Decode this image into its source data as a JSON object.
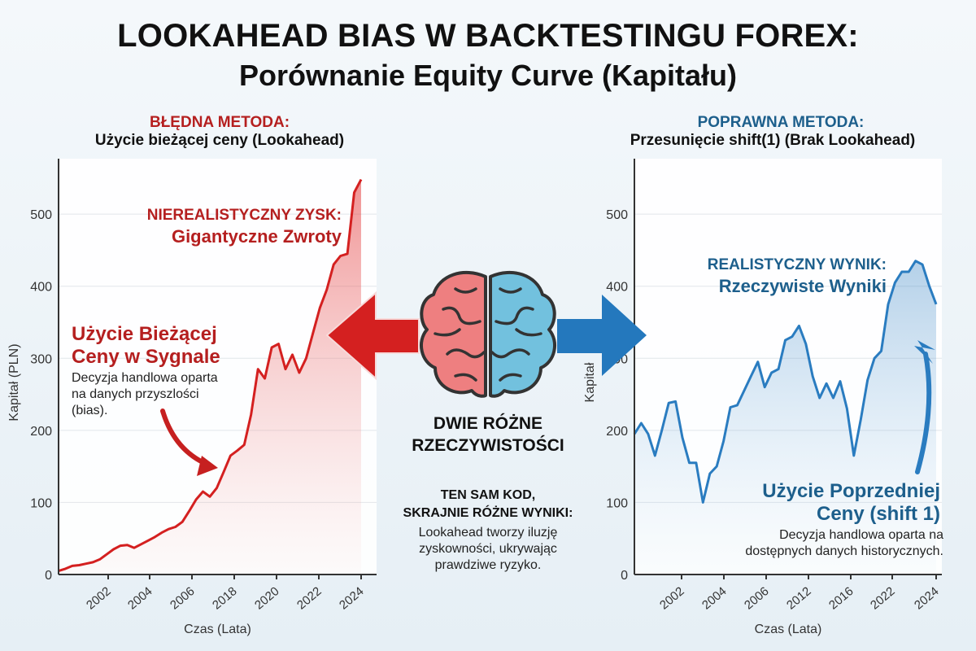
{
  "title": "LOOKAHEAD BIAS W BACKTESTINGU FOREX:",
  "subtitle": "Porównanie Equity Curve (Kapitału)",
  "colors": {
    "wrong": "#d42020",
    "wrong_text": "#b51f1f",
    "right": "#2a7cc0",
    "right_text": "#1d5f8c"
  },
  "left_panel": {
    "header": "BŁĘDNA METODA:",
    "subheader": "Użycie bieżącej ceny (Lookahead)",
    "annotation_top_1": "NIEREALISTYCZNY ZYSK:",
    "annotation_top_2": "Gigantyczne Zwroty",
    "annotation_mid_1": "Użycie Bieżącej",
    "annotation_mid_2": "Ceny w Sygnale",
    "annotation_desc": "Decyzja handlowa oparta na danych przyszlości (bias)."
  },
  "right_panel": {
    "header": "POPRAWNA METODA:",
    "subheader": "Przesunięcie shift(1) (Brak Lookahead)",
    "annotation_top_1": "REALISTYCZNY WYNIK:",
    "annotation_top_2": "Rzeczywiste Wyniki",
    "annotation_mid_1": "Użycie Poprzedniej",
    "annotation_mid_2": "Ceny (shift 1)",
    "annotation_desc": "Decyzja handlowa oparta na dostępnych danych historycznych."
  },
  "center": {
    "heading": "DWIE RÓŻNE RZECZYWISTOŚCI",
    "subheading_1": "TEN SAM KOD,",
    "subheading_2": "SKRAJNIE RÓŻNE WYNIKI:",
    "text": "Lookahead tworzy iluzję zyskowności, ukrywając prawdziwe ryzyko.",
    "icons": [
      "arrow-left-icon",
      "brain-icon",
      "arrow-right-icon"
    ]
  },
  "chart_data": [
    {
      "type": "area",
      "xlabel": "Czas (Lata)",
      "ylabel": "Kapitał (PLN)",
      "ylim": [
        0,
        560
      ],
      "yticks": [
        0,
        100,
        200,
        300,
        400,
        500
      ],
      "xticks": [
        "2002",
        "2004",
        "2006",
        "2018",
        "2020",
        "2022",
        "2024"
      ],
      "grid": true,
      "color": "#d42020",
      "values": [
        5,
        8,
        12,
        13,
        15,
        17,
        21,
        28,
        35,
        40,
        41,
        37,
        42,
        47,
        52,
        58,
        63,
        66,
        73,
        88,
        104,
        115,
        108,
        120,
        142,
        165,
        172,
        180,
        222,
        285,
        272,
        315,
        320,
        285,
        305,
        280,
        300,
        335,
        370,
        395,
        430,
        442,
        445,
        530,
        548
      ]
    },
    {
      "type": "area",
      "xlabel": "Czas (Lata)",
      "ylabel": "Kapitał",
      "ylim": [
        0,
        560
      ],
      "yticks": [
        0,
        100,
        200,
        300,
        400,
        500
      ],
      "xticks": [
        "2002",
        "2004",
        "2006",
        "2012",
        "2016",
        "2022",
        "2024"
      ],
      "grid": true,
      "color": "#2a7cc0",
      "values": [
        195,
        210,
        195,
        165,
        200,
        238,
        240,
        190,
        155,
        155,
        100,
        140,
        150,
        185,
        232,
        235,
        255,
        275,
        295,
        260,
        280,
        285,
        325,
        330,
        345,
        320,
        275,
        245,
        265,
        245,
        268,
        230,
        165,
        215,
        270,
        300,
        310,
        375,
        405,
        420,
        420,
        435,
        430,
        400,
        375
      ]
    }
  ]
}
